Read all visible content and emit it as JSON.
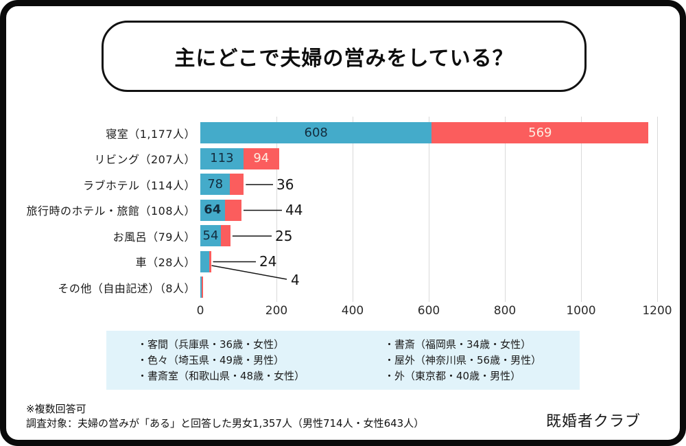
{
  "page": {
    "title": "主にどこで夫婦の営みをしている？",
    "brand": "既婚者クラブ",
    "footnotes": [
      "※複数回答可",
      "調査対象：夫婦の営みが「ある」と回答した男女1,357人（男性714人・女性643人）"
    ]
  },
  "colors": {
    "blue_series": "#44abca",
    "red_series": "#fb5d5d",
    "blue_label_text": "#132c3d",
    "red_label_text": "#fdeee2",
    "notes_bg": "#e1f3fa",
    "gridline": "#d9d9d9",
    "frame": "#0a0a0a"
  },
  "chart_data": {
    "type": "bar",
    "orientation": "horizontal",
    "stacked": true,
    "grid": "vertical",
    "legend": "none",
    "x_min": 0,
    "x_max": 1200,
    "x_ticks": [
      "0",
      "200",
      "400",
      "600",
      "800",
      "1000",
      "1200"
    ],
    "categories": [
      "寝室（1,177人）",
      "リビング（207人）",
      "ラブホテル（114人）",
      "旅行時のホテル・旅館（108人）",
      "お風呂（79人）",
      "車（28人）",
      "その他（自由記述）（8人）"
    ],
    "series": [
      {
        "name": "blue",
        "values": [
          608,
          113,
          78,
          64,
          54,
          24,
          4
        ]
      },
      {
        "name": "red",
        "values": [
          569,
          94,
          36,
          44,
          25,
          4,
          4
        ]
      }
    ],
    "rows": [
      {
        "category": "寝室（1,177人）",
        "blue": 608,
        "red": 569,
        "blue_label": "608",
        "red_label": "569",
        "blue_style": "inside",
        "red_style": "inside"
      },
      {
        "category": "リビング（207人）",
        "blue": 113,
        "red": 94,
        "blue_label": "113",
        "red_label": "94",
        "blue_style": "inside",
        "red_style": "inside"
      },
      {
        "category": "ラブホテル（114人）",
        "blue": 78,
        "red": 36,
        "blue_label": "78",
        "red_label": "36",
        "blue_style": "inside",
        "red_style": "leader"
      },
      {
        "category": "旅行時のホテル・旅館（108人）",
        "blue": 64,
        "red": 44,
        "blue_label": "64",
        "red_label": "44",
        "blue_style": "inside-bold",
        "red_style": "leader"
      },
      {
        "category": "お風呂（79人）",
        "blue": 54,
        "red": 25,
        "blue_label": "54",
        "red_label": "25",
        "blue_style": "inside",
        "red_style": "leader"
      },
      {
        "category": "車（28人）",
        "blue": 24,
        "red": 4,
        "blue_label": "24",
        "red_label": "4",
        "blue_style": "leader",
        "red_style": "leader-diag"
      },
      {
        "category": "その他（自由記述）（8人）",
        "blue": 4,
        "red": 4,
        "blue_label": "",
        "red_label": "",
        "blue_style": "none",
        "red_style": "none"
      }
    ]
  },
  "notes": {
    "columns": [
      [
        "・客間（兵庫県・36歳・女性）",
        "・色々（埼玉県・49歳・男性）",
        "・書斎室（和歌山県・48歳・女性）"
      ],
      [
        "・書斎（福岡県・34歳・女性）",
        "・屋外（神奈川県・56歳・男性）",
        "・外（東京都・40歳・男性）"
      ]
    ]
  }
}
